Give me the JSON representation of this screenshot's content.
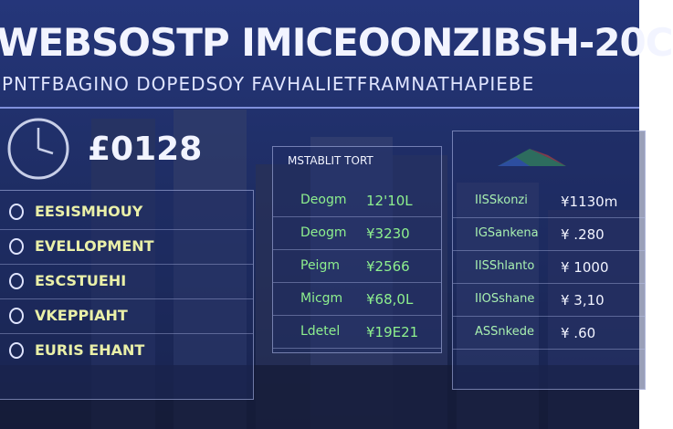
{
  "header": {
    "title": "WEBSOSTP IMICEOONZIBSH-20C",
    "subtitle": "PNTFBAGINO DOPEDSOY  FAVHALIETFRAMNATHAPIEBE"
  },
  "clock_panel": {
    "value": "£0128"
  },
  "menu": {
    "items": [
      "EESISMHOUY",
      "EVELLOPMENT",
      "ESCSTUEHI",
      "VKEPPIAHT",
      "EURIS EHANT"
    ]
  },
  "table": {
    "header": "MSTABLIT   TORT",
    "rows": [
      [
        "Deogm",
        "12'10L"
      ],
      [
        "Deogm",
        "¥3230"
      ],
      [
        "Peigm",
        "¥2566"
      ],
      [
        "Micgm",
        "¥68,0L"
      ],
      [
        "Ldetel",
        "¥19E21"
      ]
    ]
  },
  "side_table": {
    "rows": [
      [
        "IISSkonzi",
        "¥1130m"
      ],
      [
        "IGSankena",
        "¥ .280"
      ],
      [
        "IISShlanto",
        "¥ 1000"
      ],
      [
        "IIOSshane",
        "¥ 3,10"
      ],
      [
        "ASSnkede",
        "¥ .60"
      ]
    ]
  }
}
